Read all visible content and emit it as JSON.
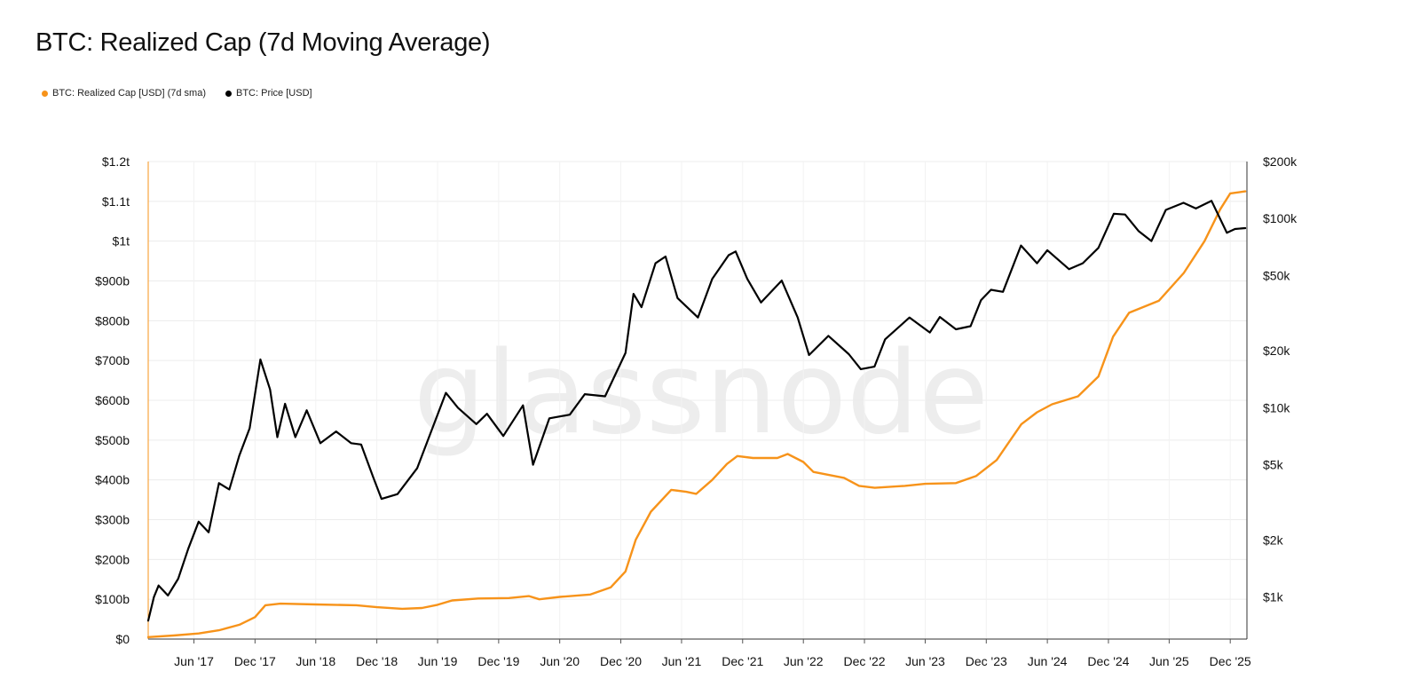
{
  "chart_data": {
    "type": "line",
    "title": "BTC: Realized Cap (7d Moving Average)",
    "watermark": "glassnode",
    "legend_position": "top-left",
    "grid": true,
    "x_axis": {
      "range": [
        "2017-01-15",
        "2026-01-20"
      ],
      "tick_labels": [
        {
          "label": "Jun '17",
          "date": "2017-06-01"
        },
        {
          "label": "Dec '17",
          "date": "2017-12-01"
        },
        {
          "label": "Jun '18",
          "date": "2018-06-01"
        },
        {
          "label": "Dec '18",
          "date": "2018-12-01"
        },
        {
          "label": "Jun '19",
          "date": "2019-06-01"
        },
        {
          "label": "Dec '19",
          "date": "2019-12-01"
        },
        {
          "label": "Jun '20",
          "date": "2020-06-01"
        },
        {
          "label": "Dec '20",
          "date": "2020-12-01"
        },
        {
          "label": "Jun '21",
          "date": "2021-06-01"
        },
        {
          "label": "Dec '21",
          "date": "2021-12-01"
        },
        {
          "label": "Jun '22",
          "date": "2022-06-01"
        },
        {
          "label": "Dec '22",
          "date": "2022-12-01"
        },
        {
          "label": "Jun '23",
          "date": "2023-06-01"
        },
        {
          "label": "Dec '23",
          "date": "2023-12-01"
        },
        {
          "label": "Jun '24",
          "date": "2024-06-01"
        },
        {
          "label": "Dec '24",
          "date": "2024-12-01"
        },
        {
          "label": "Jun '25",
          "date": "2025-06-01"
        },
        {
          "label": "Dec '25",
          "date": "2025-12-01"
        }
      ]
    },
    "y_left": {
      "scale": "linear",
      "range": [
        0,
        1200000000000
      ],
      "ticks": [
        {
          "label": "$0",
          "value": 0
        },
        {
          "label": "$100b",
          "value": 100000000000
        },
        {
          "label": "$200b",
          "value": 200000000000
        },
        {
          "label": "$300b",
          "value": 300000000000
        },
        {
          "label": "$400b",
          "value": 400000000000
        },
        {
          "label": "$500b",
          "value": 500000000000
        },
        {
          "label": "$600b",
          "value": 600000000000
        },
        {
          "label": "$700b",
          "value": 700000000000
        },
        {
          "label": "$800b",
          "value": 800000000000
        },
        {
          "label": "$900b",
          "value": 900000000000
        },
        {
          "label": "$1t",
          "value": 1000000000000
        },
        {
          "label": "$1.1t",
          "value": 1100000000000
        },
        {
          "label": "$1.2t",
          "value": 1200000000000
        }
      ]
    },
    "y_right": {
      "scale": "log",
      "range": [
        600,
        200000
      ],
      "ticks": [
        {
          "label": "$1k",
          "value": 1000
        },
        {
          "label": "$2k",
          "value": 2000
        },
        {
          "label": "$5k",
          "value": 5000
        },
        {
          "label": "$10k",
          "value": 10000
        },
        {
          "label": "$20k",
          "value": 20000
        },
        {
          "label": "$50k",
          "value": 50000
        },
        {
          "label": "$100k",
          "value": 100000
        },
        {
          "label": "$200k",
          "value": 200000
        }
      ]
    },
    "series": [
      {
        "name": "BTC: Realized Cap [USD] (7d sma)",
        "axis": "left",
        "color": "#f7931a",
        "points": [
          [
            "2017-01-15",
            5000000000
          ],
          [
            "2017-04-01",
            9000000000
          ],
          [
            "2017-06-15",
            14000000000
          ],
          [
            "2017-08-15",
            22000000000
          ],
          [
            "2017-10-15",
            36000000000
          ],
          [
            "2017-12-01",
            55000000000
          ],
          [
            "2018-01-01",
            85000000000
          ],
          [
            "2018-02-15",
            89000000000
          ],
          [
            "2018-06-01",
            87000000000
          ],
          [
            "2018-10-01",
            85000000000
          ],
          [
            "2018-12-01",
            80000000000
          ],
          [
            "2019-02-15",
            76000000000
          ],
          [
            "2019-04-15",
            78000000000
          ],
          [
            "2019-06-01",
            86000000000
          ],
          [
            "2019-07-15",
            97000000000
          ],
          [
            "2019-10-01",
            102000000000
          ],
          [
            "2020-01-01",
            103000000000
          ],
          [
            "2020-03-01",
            108000000000
          ],
          [
            "2020-04-01",
            100000000000
          ],
          [
            "2020-06-01",
            106000000000
          ],
          [
            "2020-09-01",
            112000000000
          ],
          [
            "2020-11-01",
            130000000000
          ],
          [
            "2020-12-15",
            170000000000
          ],
          [
            "2021-01-15",
            250000000000
          ],
          [
            "2021-03-01",
            320000000000
          ],
          [
            "2021-05-01",
            375000000000
          ],
          [
            "2021-06-15",
            370000000000
          ],
          [
            "2021-07-15",
            365000000000
          ],
          [
            "2021-09-01",
            400000000000
          ],
          [
            "2021-10-15",
            440000000000
          ],
          [
            "2021-11-15",
            460000000000
          ],
          [
            "2022-01-01",
            455000000000
          ],
          [
            "2022-03-15",
            455000000000
          ],
          [
            "2022-04-15",
            465000000000
          ],
          [
            "2022-06-01",
            445000000000
          ],
          [
            "2022-07-01",
            420000000000
          ],
          [
            "2022-10-01",
            405000000000
          ],
          [
            "2022-11-15",
            385000000000
          ],
          [
            "2023-01-01",
            380000000000
          ],
          [
            "2023-04-01",
            385000000000
          ],
          [
            "2023-06-01",
            390000000000
          ],
          [
            "2023-09-01",
            392000000000
          ],
          [
            "2023-11-01",
            410000000000
          ],
          [
            "2024-01-01",
            450000000000
          ],
          [
            "2024-03-15",
            540000000000
          ],
          [
            "2024-05-01",
            570000000000
          ],
          [
            "2024-06-15",
            590000000000
          ],
          [
            "2024-09-01",
            610000000000
          ],
          [
            "2024-11-01",
            660000000000
          ],
          [
            "2024-12-15",
            760000000000
          ],
          [
            "2025-02-01",
            820000000000
          ],
          [
            "2025-05-01",
            850000000000
          ],
          [
            "2025-07-15",
            920000000000
          ],
          [
            "2025-09-15",
            1000000000000
          ],
          [
            "2025-11-01",
            1080000000000
          ],
          [
            "2025-12-01",
            1120000000000
          ],
          [
            "2026-01-15",
            1125000000000
          ]
        ]
      },
      {
        "name": "BTC: Price [USD]",
        "axis": "right",
        "color": "#000000",
        "points": [
          [
            "2017-01-15",
            750
          ],
          [
            "2017-02-01",
            1000
          ],
          [
            "2017-02-15",
            1150
          ],
          [
            "2017-03-15",
            1020
          ],
          [
            "2017-04-15",
            1250
          ],
          [
            "2017-05-15",
            1800
          ],
          [
            "2017-06-15",
            2500
          ],
          [
            "2017-07-15",
            2200
          ],
          [
            "2017-08-15",
            4000
          ],
          [
            "2017-09-15",
            3700
          ],
          [
            "2017-10-15",
            5600
          ],
          [
            "2017-11-15",
            7800
          ],
          [
            "2017-12-17",
            18000
          ],
          [
            "2018-01-15",
            12500
          ],
          [
            "2018-02-06",
            7000
          ],
          [
            "2018-03-01",
            10500
          ],
          [
            "2018-04-01",
            7000
          ],
          [
            "2018-05-05",
            9700
          ],
          [
            "2018-06-15",
            6500
          ],
          [
            "2018-08-01",
            7500
          ],
          [
            "2018-09-15",
            6500
          ],
          [
            "2018-10-15",
            6400
          ],
          [
            "2018-11-20",
            4300
          ],
          [
            "2018-12-15",
            3300
          ],
          [
            "2019-02-01",
            3500
          ],
          [
            "2019-04-01",
            4800
          ],
          [
            "2019-06-26",
            12000
          ],
          [
            "2019-08-01",
            10000
          ],
          [
            "2019-09-25",
            8200
          ],
          [
            "2019-10-27",
            9300
          ],
          [
            "2019-12-15",
            7100
          ],
          [
            "2020-02-12",
            10300
          ],
          [
            "2020-03-13",
            5000
          ],
          [
            "2020-05-01",
            8800
          ],
          [
            "2020-07-01",
            9200
          ],
          [
            "2020-08-15",
            11800
          ],
          [
            "2020-10-15",
            11500
          ],
          [
            "2020-12-15",
            19500
          ],
          [
            "2021-01-08",
            40000
          ],
          [
            "2021-02-01",
            34000
          ],
          [
            "2021-03-15",
            58000
          ],
          [
            "2021-04-14",
            63000
          ],
          [
            "2021-05-20",
            38000
          ],
          [
            "2021-07-20",
            30000
          ],
          [
            "2021-09-01",
            48000
          ],
          [
            "2021-10-20",
            64000
          ],
          [
            "2021-11-10",
            67000
          ],
          [
            "2021-12-15",
            48000
          ],
          [
            "2022-01-25",
            36000
          ],
          [
            "2022-03-28",
            47000
          ],
          [
            "2022-05-15",
            30000
          ],
          [
            "2022-06-18",
            19000
          ],
          [
            "2022-08-15",
            24000
          ],
          [
            "2022-10-15",
            19200
          ],
          [
            "2022-11-20",
            16000
          ],
          [
            "2022-12-31",
            16500
          ],
          [
            "2023-02-01",
            23000
          ],
          [
            "2023-04-15",
            30000
          ],
          [
            "2023-06-15",
            25000
          ],
          [
            "2023-07-15",
            30200
          ],
          [
            "2023-09-01",
            26000
          ],
          [
            "2023-10-15",
            27000
          ],
          [
            "2023-11-15",
            37000
          ],
          [
            "2023-12-15",
            42000
          ],
          [
            "2024-01-20",
            41000
          ],
          [
            "2024-03-14",
            72000
          ],
          [
            "2024-05-01",
            58000
          ],
          [
            "2024-06-01",
            68000
          ],
          [
            "2024-08-05",
            54000
          ],
          [
            "2024-09-15",
            58000
          ],
          [
            "2024-11-01",
            70000
          ],
          [
            "2024-12-17",
            106000
          ],
          [
            "2025-01-20",
            105000
          ],
          [
            "2025-03-01",
            86000
          ],
          [
            "2025-04-09",
            76000
          ],
          [
            "2025-05-22",
            111000
          ],
          [
            "2025-07-14",
            121000
          ],
          [
            "2025-08-20",
            113000
          ],
          [
            "2025-10-06",
            124000
          ],
          [
            "2025-11-21",
            84000
          ],
          [
            "2025-12-15",
            88000
          ],
          [
            "2026-01-15",
            89000
          ]
        ]
      }
    ]
  }
}
